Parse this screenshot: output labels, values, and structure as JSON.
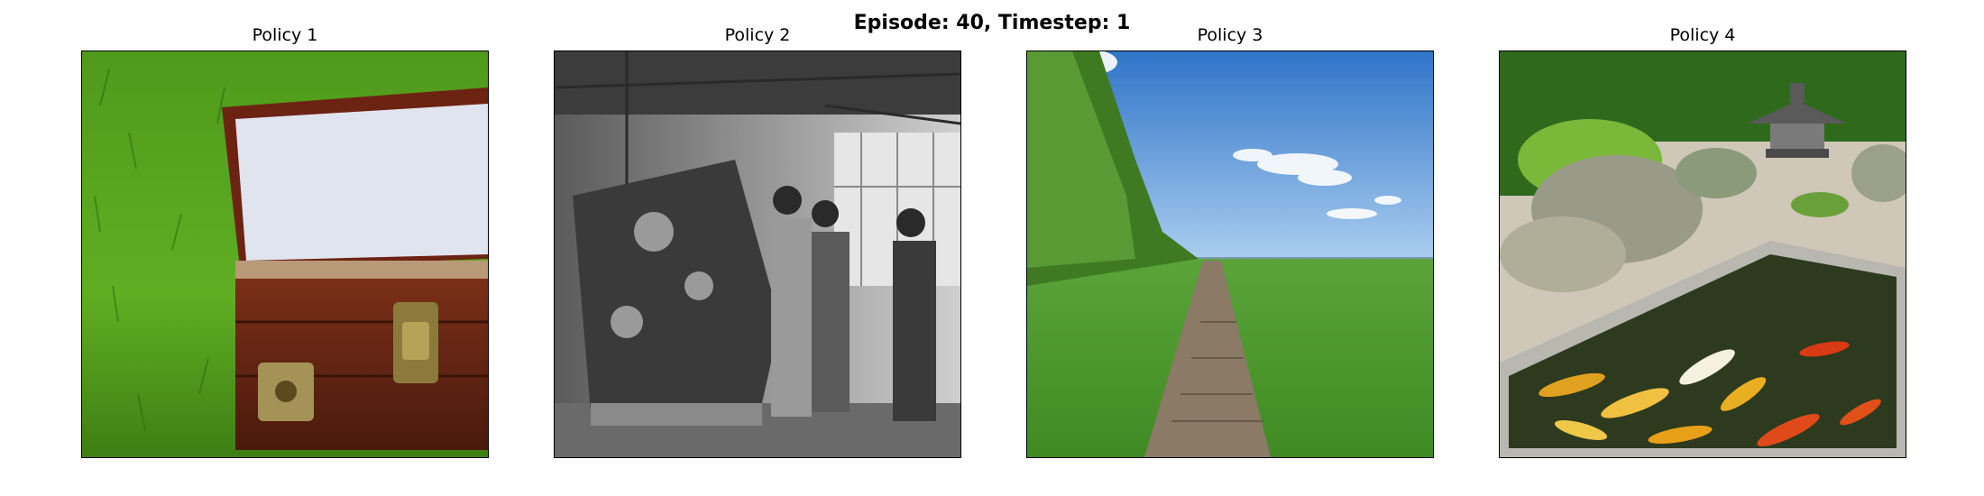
{
  "figure": {
    "title": "Episode: 40, Timestep: 1"
  },
  "panels": [
    {
      "title": "Policy 1",
      "image_subject": "treasure-chest-on-grass"
    },
    {
      "title": "Policy 2",
      "image_subject": "vintage-workers-at-machine"
    },
    {
      "title": "Policy 3",
      "image_subject": "path-through-field"
    },
    {
      "title": "Policy 4",
      "image_subject": "zen-garden-koi-pond"
    }
  ]
}
